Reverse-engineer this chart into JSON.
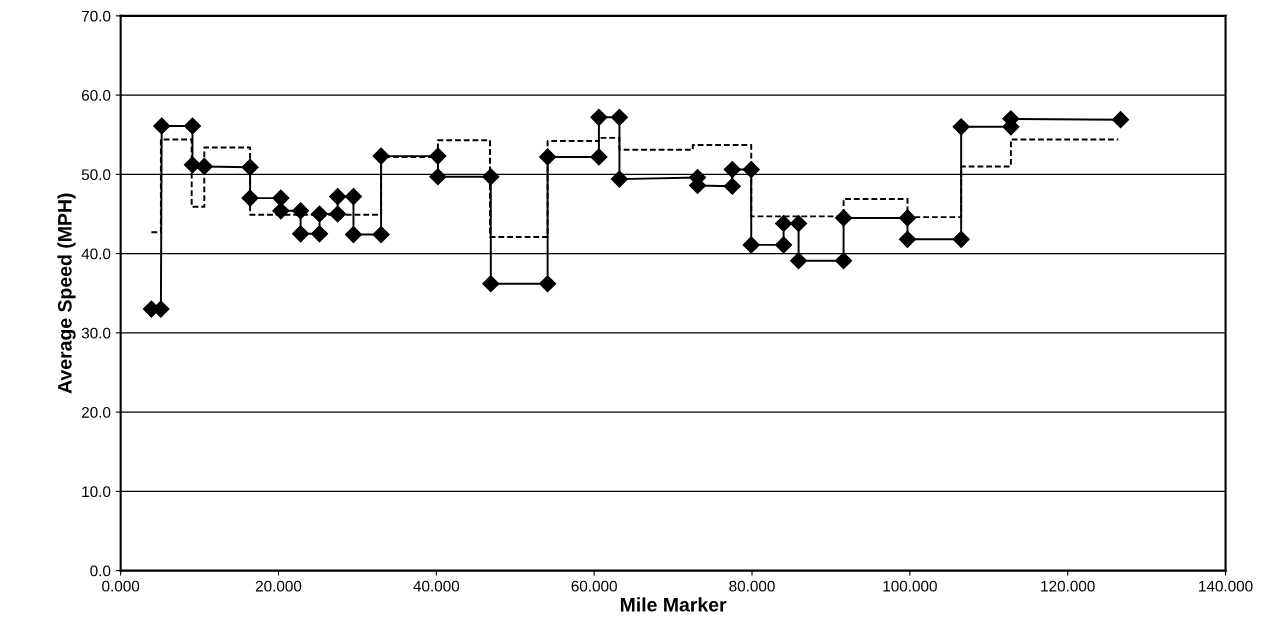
{
  "chart_data": {
    "type": "line",
    "xlabel": "Mile Marker",
    "ylabel": "Average Speed (MPH)",
    "xlim": [
      0,
      140
    ],
    "ylim": [
      0,
      70
    ],
    "xticks": [
      {
        "value": 0,
        "label": "0.000"
      },
      {
        "value": 20,
        "label": "20.000"
      },
      {
        "value": 40,
        "label": "40.000"
      },
      {
        "value": 60,
        "label": "60.000"
      },
      {
        "value": 80,
        "label": "80.000"
      },
      {
        "value": 100,
        "label": "100.000"
      },
      {
        "value": 120,
        "label": "120.000"
      },
      {
        "value": 140,
        "label": "140.000"
      }
    ],
    "yticks": [
      {
        "value": 0,
        "label": "0.0"
      },
      {
        "value": 10,
        "label": "10.0"
      },
      {
        "value": 20,
        "label": "20.0"
      },
      {
        "value": 30,
        "label": "30.0"
      },
      {
        "value": 40,
        "label": "40.0"
      },
      {
        "value": 50,
        "label": "50.0"
      },
      {
        "value": 60,
        "label": "60.0"
      },
      {
        "value": 70,
        "label": "70.0"
      }
    ],
    "grid": "y",
    "series": [
      {
        "color": "#000000",
        "marker": "diamond",
        "line_style": "solid",
        "x": [
          3.9,
          5.1,
          5.2,
          9.1,
          9.1,
          10.6,
          16.4,
          16.4,
          20.3,
          20.3,
          22.8,
          22.8,
          25.2,
          25.2,
          27.5,
          27.5,
          29.5,
          29.5,
          33.0,
          33.0,
          40.2,
          40.2,
          46.9,
          46.9,
          54.1,
          54.1,
          60.6,
          60.6,
          63.2,
          63.2,
          73.1,
          73.1,
          77.5,
          77.5,
          79.9,
          79.9,
          84.0,
          84.0,
          85.9,
          85.9,
          91.6,
          91.6,
          99.7,
          99.7,
          106.5,
          106.5,
          112.8,
          112.8,
          126.7
        ],
        "values": [
          33,
          33,
          56.1,
          56.1,
          51.2,
          51.0,
          50.9,
          47.0,
          47.0,
          45.4,
          45.4,
          42.5,
          42.5,
          45.0,
          45.0,
          47.2,
          47.2,
          42.4,
          42.4,
          52.3,
          52.3,
          49.7,
          49.7,
          36.2,
          36.2,
          52.2,
          52.2,
          57.2,
          57.2,
          49.4,
          49.6,
          48.6,
          48.5,
          50.6,
          50.6,
          41.1,
          41.1,
          43.8,
          43.8,
          39.1,
          39.1,
          44.5,
          44.5,
          41.8,
          41.8,
          56.0,
          56.0,
          57.0,
          56.9
        ]
      },
      {
        "color": "#000000",
        "marker": "none",
        "line_style": "dashed",
        "x": [
          3.9,
          5.1,
          5.1,
          9.0,
          9.0,
          10.6,
          10.6,
          16.4,
          16.4,
          33.0,
          33.0,
          40.2,
          40.2,
          46.8,
          46.8,
          54.1,
          54.1,
          60.6,
          60.6,
          63.2,
          63.2,
          72.5,
          72.5,
          79.9,
          79.9,
          91.6,
          91.6,
          99.7,
          99.7,
          106.5,
          106.5,
          112.8,
          112.8,
          126.4
        ],
        "values": [
          42.7,
          42.7,
          54.4,
          54.4,
          45.9,
          45.9,
          53.4,
          53.4,
          44.9,
          44.9,
          52.2,
          52.2,
          54.3,
          54.3,
          42.1,
          42.1,
          54.2,
          54.2,
          54.6,
          54.6,
          53.1,
          53.1,
          53.7,
          53.7,
          44.7,
          44.7,
          46.9,
          46.9,
          44.6,
          44.6,
          51.0,
          51.0,
          54.4,
          54.4
        ]
      }
    ]
  }
}
